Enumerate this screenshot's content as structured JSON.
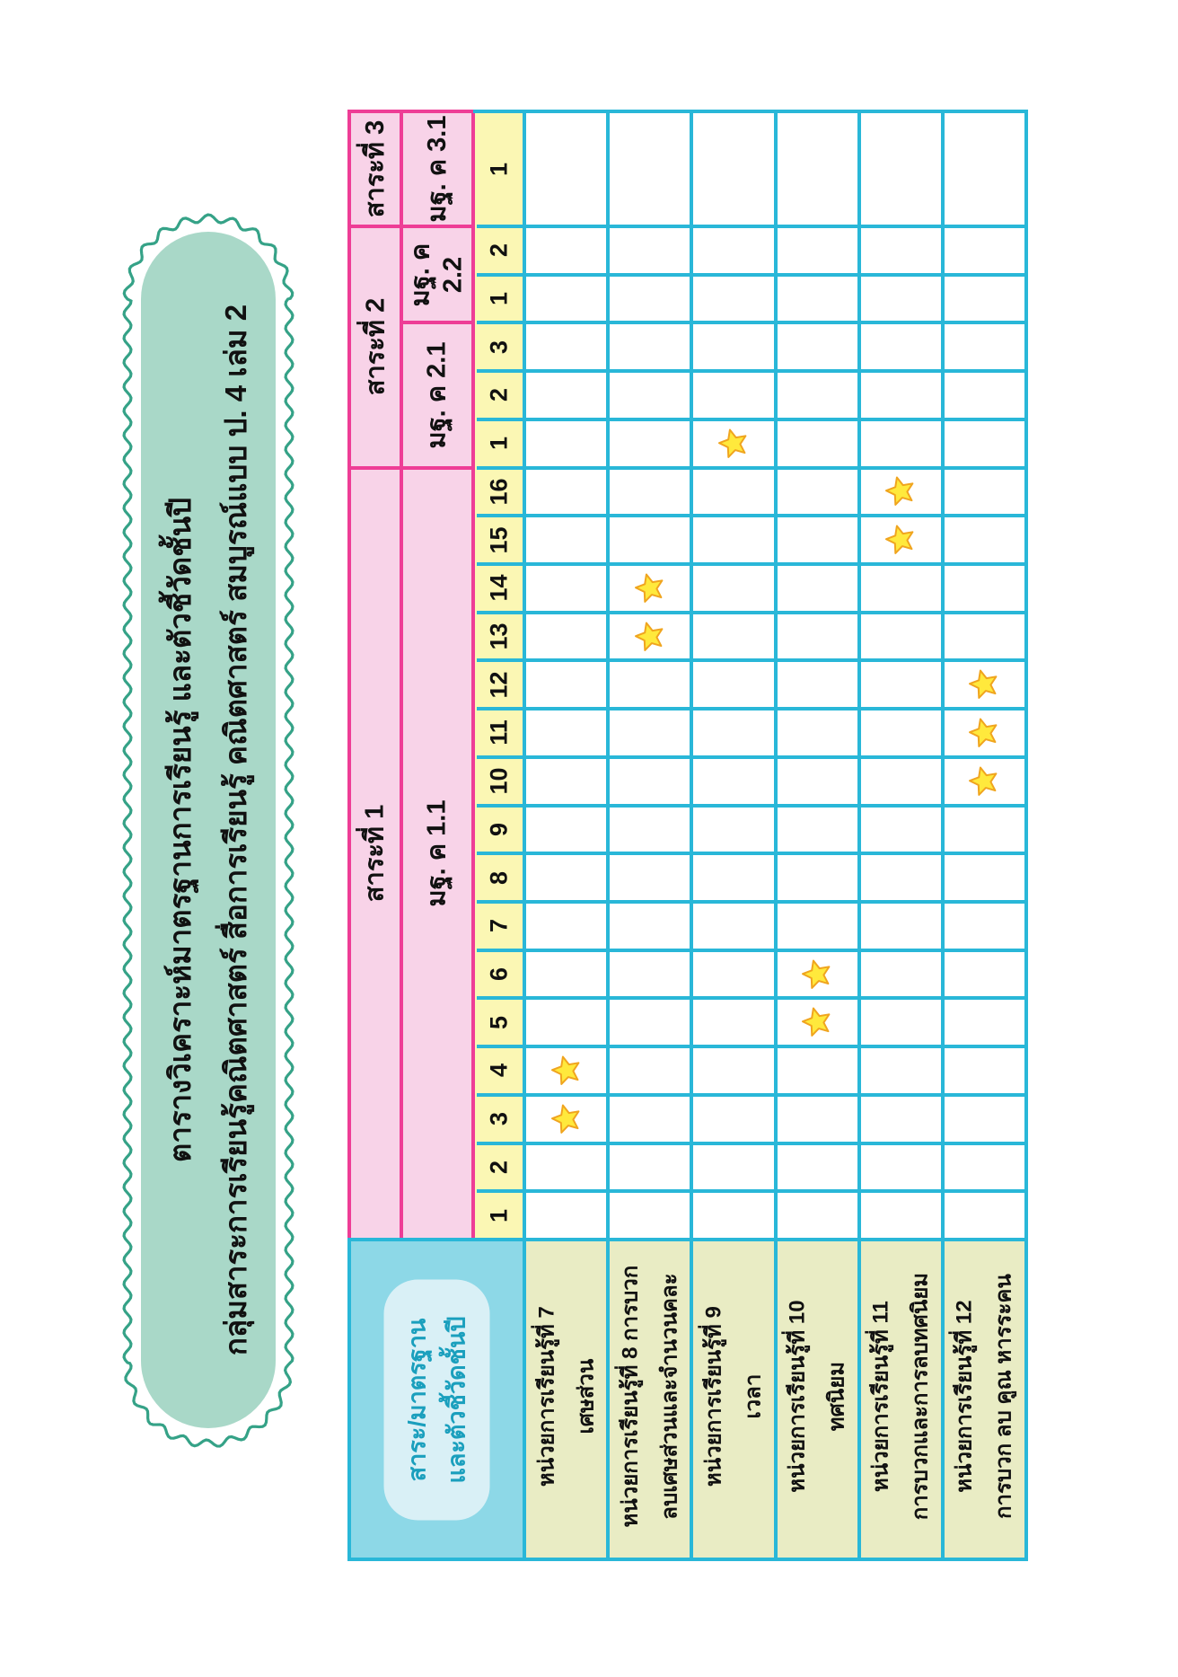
{
  "banner": {
    "line1": "ตารางวิเคราะห์มาตรฐานการเรียนรู้ และตัวชี้วัดชั้นปี",
    "line2": "กลุ่มสาระการเรียนรู้คณิตศาสตร์ สื่อการเรียนรู้ คณิตศาสตร์ สมบูรณ์แบบ ป. 4 เล่ม 2"
  },
  "corner_header": {
    "line1": "สาระ/มาตรฐาน",
    "line2": "และตัวชี้วัดชั้นปี"
  },
  "strands": [
    {
      "label": "สาระที่ 3",
      "standards": [
        {
          "label": "มฐ. ค 3.1",
          "indicators": [
            "1"
          ]
        }
      ]
    },
    {
      "label": "สาระที่ 2",
      "standards": [
        {
          "label": "มฐ. ค 2.2",
          "indicators": [
            "2",
            "1"
          ]
        },
        {
          "label": "มฐ. ค 2.1",
          "indicators": [
            "3",
            "2",
            "1"
          ]
        }
      ]
    },
    {
      "label": "สาระที่ 1",
      "standards": [
        {
          "label": "มฐ. ค 1.1",
          "indicators": [
            "16",
            "15",
            "14",
            "13",
            "12",
            "11",
            "10",
            "9",
            "8",
            "7",
            "6",
            "5",
            "4",
            "3",
            "2",
            "1"
          ]
        }
      ]
    }
  ],
  "units": [
    {
      "line1": "หน่วยการเรียนรู้ที่ 7",
      "line2": "เศษส่วน"
    },
    {
      "line1": "หน่วยการเรียนรู้ที่ 8 การบวก",
      "line2": "ลบเศษส่วนและจำนวนคละ"
    },
    {
      "line1": "หน่วยการเรียนรู้ที่ 9",
      "line2": "เวลา"
    },
    {
      "line1": "หน่วยการเรียนรู้ที่ 10",
      "line2": "ทศนิยม"
    },
    {
      "line1": "หน่วยการเรียนรู้ที่ 11",
      "line2": "การบวกและการลบทศนิยม"
    },
    {
      "line1": "หน่วยการเรียนรู้ที่ 12",
      "line2": "การบวก ลบ คูณ หารระคน"
    }
  ],
  "stars": [
    {
      "row": 5,
      "col": 2,
      "standard": "มฐ. ค 2.1",
      "indicator": "1",
      "unit": "หน่วยการเรียนรู้ที่ 9"
    },
    {
      "row": 6,
      "col": 4,
      "standard": "มฐ. ค 1.1",
      "indicator": "16",
      "unit": "หน่วยการเรียนรู้ที่ 11"
    },
    {
      "row": 7,
      "col": 4,
      "standard": "มฐ. ค 1.1",
      "indicator": "15",
      "unit": "หน่วยการเรียนรู้ที่ 11"
    },
    {
      "row": 8,
      "col": 1,
      "standard": "มฐ. ค 1.1",
      "indicator": "14",
      "unit": "หน่วยการเรียนรู้ที่ 8"
    },
    {
      "row": 9,
      "col": 1,
      "standard": "มฐ. ค 1.1",
      "indicator": "13",
      "unit": "หน่วยการเรียนรู้ที่ 8"
    },
    {
      "row": 10,
      "col": 5,
      "standard": "มฐ. ค 1.1",
      "indicator": "12",
      "unit": "หน่วยการเรียนรู้ที่ 12"
    },
    {
      "row": 11,
      "col": 5,
      "standard": "มฐ. ค 1.1",
      "indicator": "11",
      "unit": "หน่วยการเรียนรู้ที่ 12"
    },
    {
      "row": 12,
      "col": 5,
      "standard": "มฐ. ค 1.1",
      "indicator": "10",
      "unit": "หน่วยการเรียนรู้ที่ 12"
    },
    {
      "row": 16,
      "col": 3,
      "standard": "มฐ. ค 1.1",
      "indicator": "6",
      "unit": "หน่วยการเรียนรู้ที่ 10"
    },
    {
      "row": 17,
      "col": 3,
      "standard": "มฐ. ค 1.1",
      "indicator": "5",
      "unit": "หน่วยการเรียนรู้ที่ 10"
    },
    {
      "row": 18,
      "col": 0,
      "standard": "มฐ. ค 1.1",
      "indicator": "4",
      "unit": "หน่วยการเรียนรู้ที่ 7"
    },
    {
      "row": 19,
      "col": 0,
      "standard": "มฐ. ค 1.1",
      "indicator": "3",
      "unit": "หน่วยการเรียนรู้ที่ 7"
    }
  ],
  "colors": {
    "pink_header": "#f8d3e8",
    "magenta_border": "#ee3d96",
    "cyan_border": "#29b7d8",
    "yellow_band": "#fbf7b4",
    "khaki_unit": "#e9ecc4",
    "blue_corner": "#8dd8e7",
    "corner_panel": "#d9f0f6",
    "corner_text": "#1a9fbd",
    "banner_fill": "#a9d8c8",
    "banner_border": "#35a287",
    "star_fill": "#ffe93c",
    "star_stroke": "#f0a51f"
  }
}
